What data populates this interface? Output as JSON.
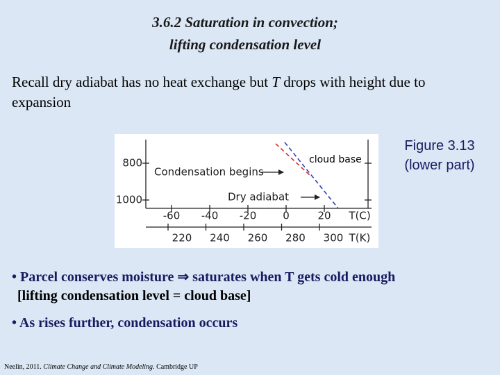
{
  "header": {
    "title_lines": [
      "3.6.2 Saturation in convection;",
      "lifting condensation level"
    ]
  },
  "intro": {
    "parts": [
      "Recall dry adiabat has no heat exchange but ",
      "T",
      " drops with height due to expansion"
    ]
  },
  "figure": {
    "caption_lines": [
      "Figure 3.13",
      "(lower part)"
    ],
    "pressure_labels": [
      "800",
      "1000"
    ],
    "celsius_labels": [
      "-60",
      "-40",
      "-20",
      "0",
      "20"
    ],
    "celsius_unit": "T(C)",
    "kelvin_labels": [
      "220",
      "240",
      "260",
      "280",
      "300"
    ],
    "kelvin_unit": "T(K)",
    "condensation_label": "Condensation begins",
    "adiabat_label": "Dry adiabat",
    "cloud_base_label": "cloud base"
  },
  "bullets": [
    {
      "lines": [
        "• Parcel conserves moisture ⇒ saturates when T gets cold enough",
        "[lifting condensation level = cloud base]"
      ]
    },
    {
      "lines": [
        "• As rises further, condensation occurs"
      ]
    }
  ],
  "citation": {
    "parts": [
      "Neelin, 2011. ",
      "Climate Change and Climate Modeling",
      ". Cambridge UP"
    ]
  }
}
